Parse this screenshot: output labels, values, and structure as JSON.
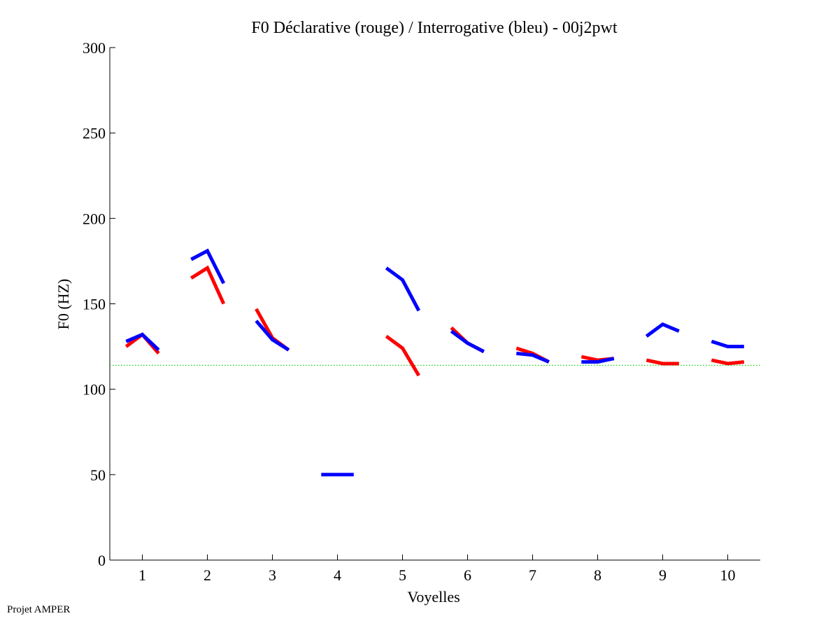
{
  "chart_data": {
    "type": "line",
    "title": "F0 Déclarative (rouge) / Interrogative (bleu) - 00j2pwt",
    "xlabel": "Voyelles",
    "ylabel": "F0 (HZ)",
    "ylim": [
      0,
      300
    ],
    "xlim": [
      0.5,
      10.5
    ],
    "yticks": [
      "0",
      "50",
      "100",
      "150",
      "200",
      "250",
      "300"
    ],
    "xticks": [
      "1",
      "2",
      "3",
      "4",
      "5",
      "6",
      "7",
      "8",
      "9",
      "10"
    ],
    "reference_line": {
      "y": 114,
      "color": "#00cc00",
      "style": "dotted"
    },
    "series": [
      {
        "name": "Déclarative",
        "color": "#ff0000",
        "segments": [
          {
            "x": [
              0.75,
              1.0,
              1.25
            ],
            "y": [
              125,
              132,
              121
            ]
          },
          {
            "x": [
              1.75,
              2.0,
              2.25
            ],
            "y": [
              165,
              171,
              150
            ]
          },
          {
            "x": [
              2.75,
              3.0,
              3.25
            ],
            "y": [
              147,
              130,
              123
            ]
          },
          {
            "x": [
              4.75,
              5.0,
              5.25
            ],
            "y": [
              131,
              124,
              108
            ]
          },
          {
            "x": [
              5.75,
              6.0,
              6.25
            ],
            "y": [
              136,
              127,
              122
            ]
          },
          {
            "x": [
              6.75,
              7.0,
              7.25
            ],
            "y": [
              124,
              121,
              116
            ]
          },
          {
            "x": [
              7.75,
              8.0,
              8.25
            ],
            "y": [
              119,
              117,
              118
            ]
          },
          {
            "x": [
              8.75,
              9.0,
              9.25
            ],
            "y": [
              117,
              115,
              115
            ]
          },
          {
            "x": [
              9.75,
              10.0,
              10.25
            ],
            "y": [
              117,
              115,
              116
            ]
          }
        ]
      },
      {
        "name": "Interrogative",
        "color": "#0000ff",
        "segments": [
          {
            "x": [
              0.75,
              1.0,
              1.25
            ],
            "y": [
              128,
              132,
              123
            ]
          },
          {
            "x": [
              1.75,
              2.0,
              2.25
            ],
            "y": [
              176,
              181,
              162
            ]
          },
          {
            "x": [
              2.75,
              3.0,
              3.25
            ],
            "y": [
              140,
              129,
              123
            ]
          },
          {
            "x": [
              3.75,
              4.0,
              4.25
            ],
            "y": [
              50,
              50,
              50
            ]
          },
          {
            "x": [
              4.75,
              5.0,
              5.25
            ],
            "y": [
              171,
              164,
              146
            ]
          },
          {
            "x": [
              5.75,
              6.0,
              6.25
            ],
            "y": [
              134,
              127,
              122
            ]
          },
          {
            "x": [
              6.75,
              7.0,
              7.25
            ],
            "y": [
              121,
              120,
              116
            ]
          },
          {
            "x": [
              7.75,
              8.0,
              8.25
            ],
            "y": [
              116,
              116,
              118
            ]
          },
          {
            "x": [
              8.75,
              9.0,
              9.25
            ],
            "y": [
              131,
              138,
              134
            ]
          },
          {
            "x": [
              9.75,
              10.0,
              10.25
            ],
            "y": [
              128,
              125,
              125
            ]
          }
        ]
      }
    ]
  },
  "footer": {
    "credit": "Projet AMPER"
  }
}
